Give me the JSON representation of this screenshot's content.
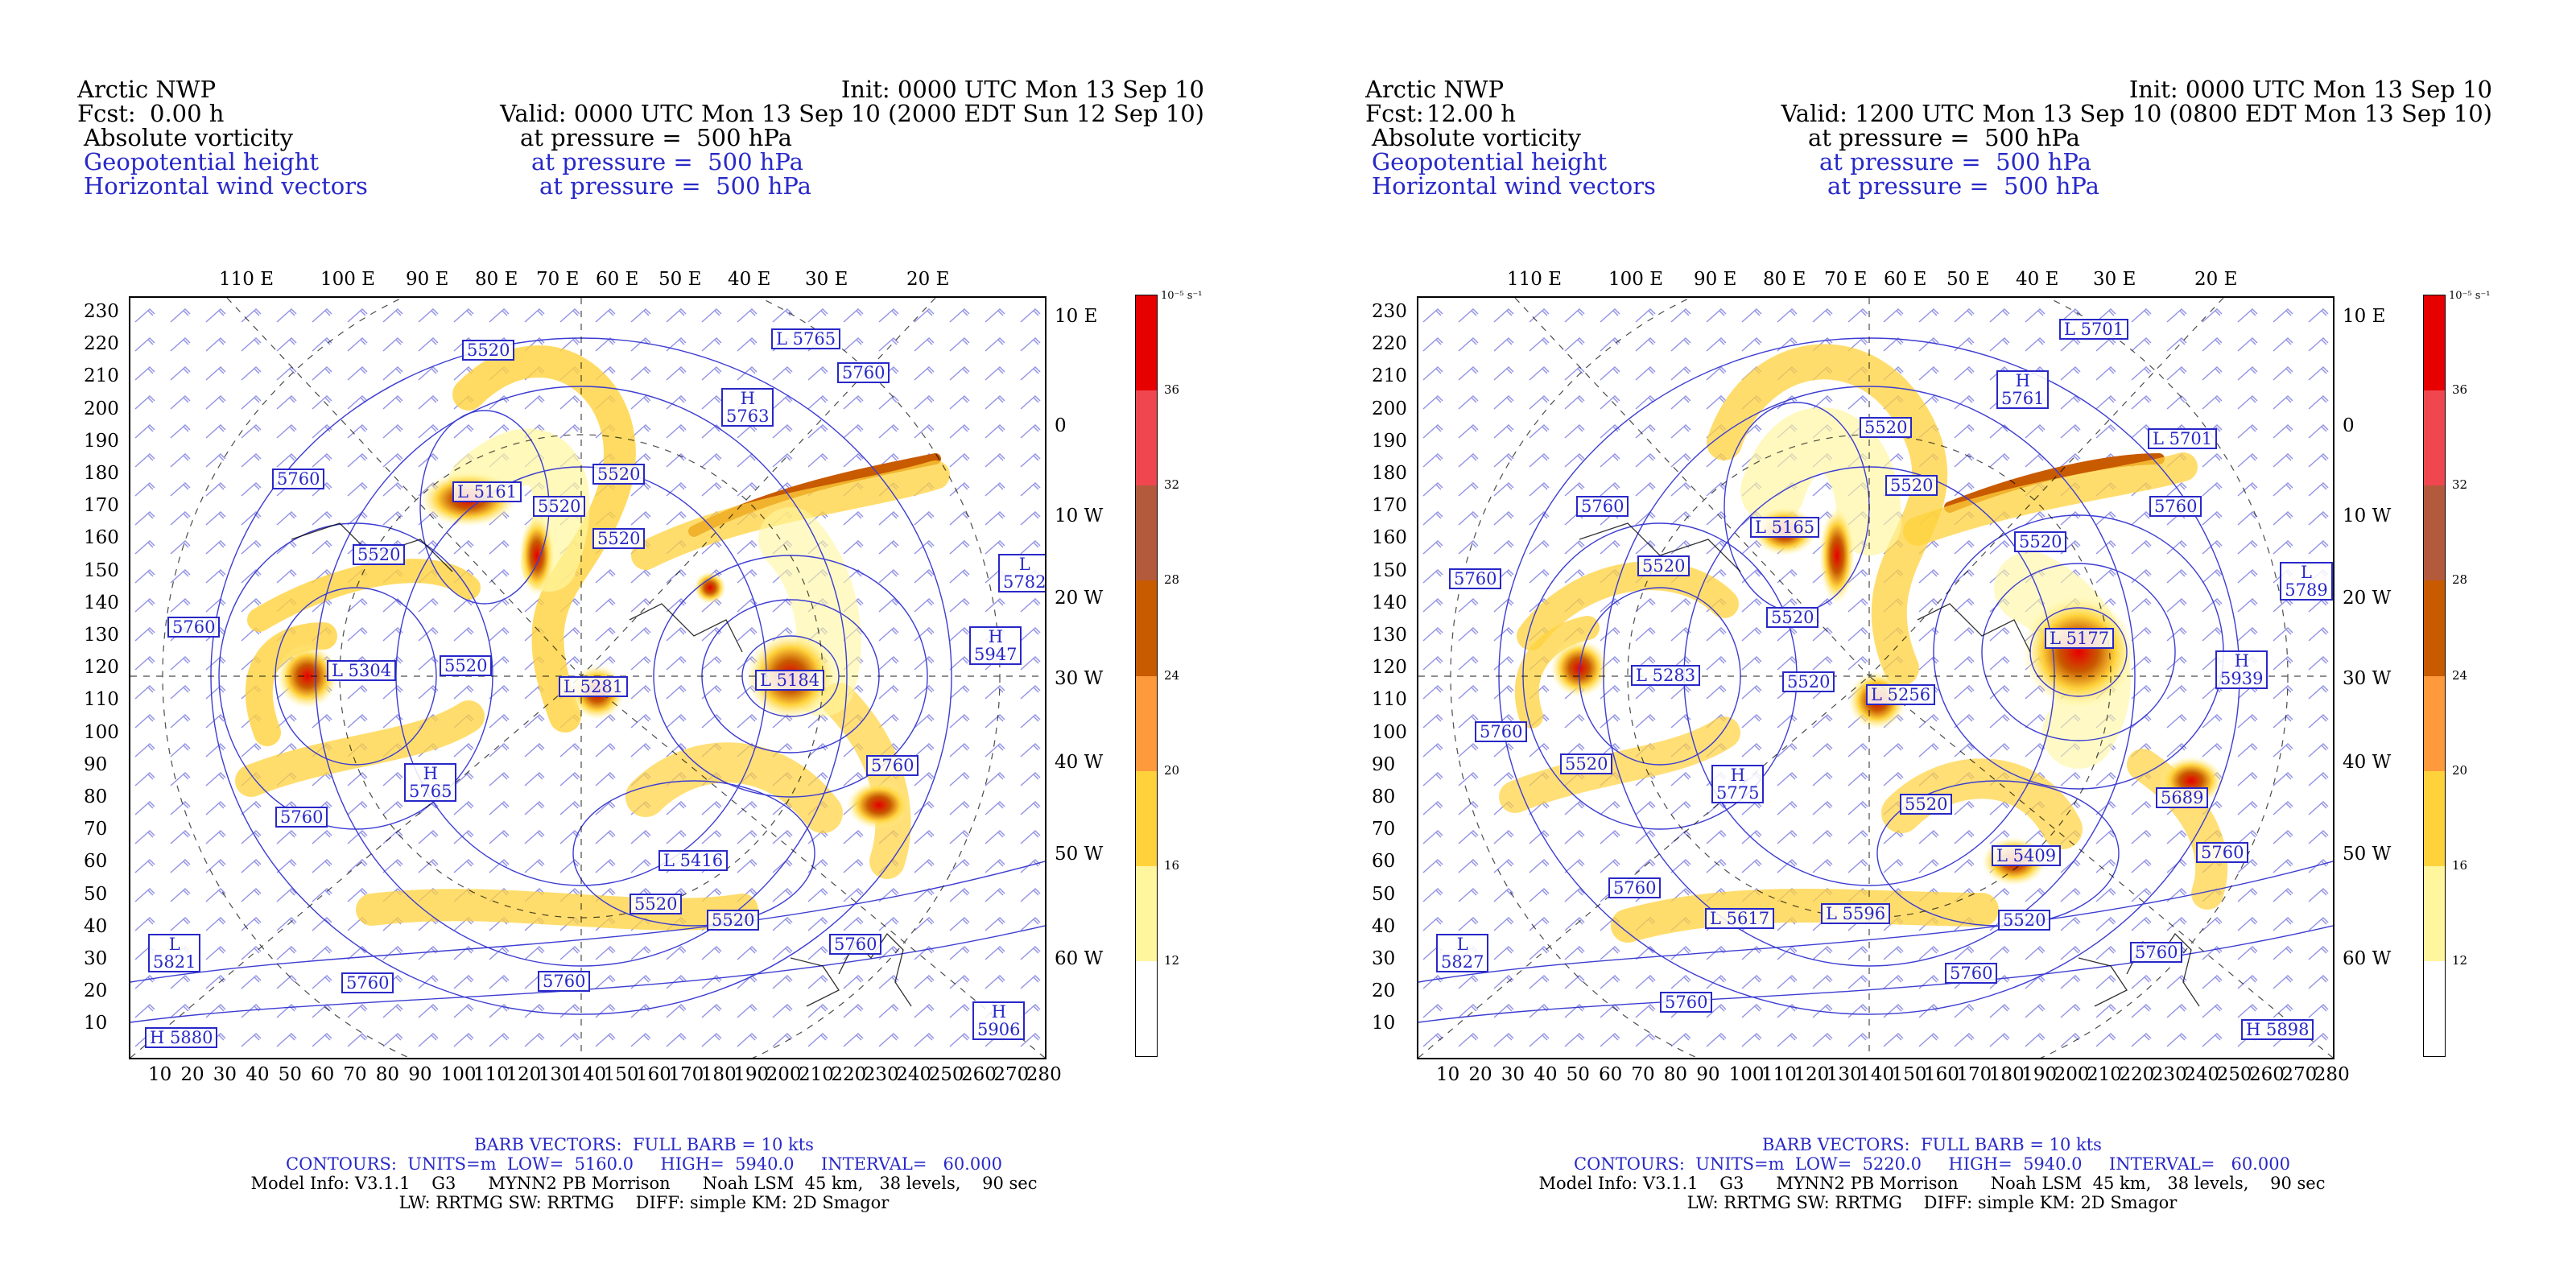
{
  "panels": [
    {
      "model": "Arctic NWP",
      "fcst_label": "Fcst:",
      "fcst_value": "0.00 h",
      "init": "Init: 0000 UTC Mon 13 Sep 10",
      "valid": "Valid: 0000 UTC Mon 13 Sep 10 (2000 EDT Sun 12 Sep 10)",
      "fields": [
        "Absolute vorticity",
        "Geopotential height",
        "Horizontal wind vectors"
      ],
      "levels": [
        "at pressure =  500 hPa",
        "at pressure =  500 hPa",
        "at pressure =  500 hPa"
      ],
      "centers": [
        {
          "type": "L",
          "value": "5765"
        },
        {
          "type": "",
          "value": "5760"
        },
        {
          "type": "H",
          "value": "5763"
        },
        {
          "type": "",
          "value": "5520"
        },
        {
          "type": "",
          "value": "5760"
        },
        {
          "type": "L",
          "value": "5161"
        },
        {
          "type": "",
          "value": "5520"
        },
        {
          "type": "",
          "value": "5520"
        },
        {
          "type": "",
          "value": "5520"
        },
        {
          "type": "L",
          "value": "5782"
        },
        {
          "type": "",
          "value": "5520"
        },
        {
          "type": "",
          "value": "5760"
        },
        {
          "type": "H",
          "value": "5947"
        },
        {
          "type": "L",
          "value": "5304"
        },
        {
          "type": "",
          "value": "5520"
        },
        {
          "type": "L",
          "value": "5281"
        },
        {
          "type": "L",
          "value": "5184"
        },
        {
          "type": "",
          "value": "5760"
        },
        {
          "type": "H",
          "value": "5765"
        },
        {
          "type": "",
          "value": "5760"
        },
        {
          "type": "L",
          "value": "5416"
        },
        {
          "type": "",
          "value": "5520"
        },
        {
          "type": "",
          "value": "5520"
        },
        {
          "type": "L",
          "value": "5821"
        },
        {
          "type": "",
          "value": "5760"
        },
        {
          "type": "",
          "value": "5760"
        },
        {
          "type": "",
          "value": "5760"
        },
        {
          "type": "H",
          "value": "5906"
        },
        {
          "type": "H",
          "value": "5880"
        }
      ]
    },
    {
      "model": "Arctic NWP",
      "fcst_label": "Fcst:",
      "fcst_value": "12.00 h",
      "init": "Init: 0000 UTC Mon 13 Sep 10",
      "valid": "Valid: 1200 UTC Mon 13 Sep 10 (0800 EDT Mon 13 Sep 10)",
      "fields": [
        "Absolute vorticity",
        "Geopotential height",
        "Horizontal wind vectors"
      ],
      "levels": [
        "at pressure =  500 hPa",
        "at pressure =  500 hPa",
        "at pressure =  500 hPa"
      ],
      "centers": [
        {
          "type": "L",
          "value": "5701"
        },
        {
          "type": "H",
          "value": "5761"
        },
        {
          "type": "",
          "value": "5520"
        },
        {
          "type": "L",
          "value": "5701"
        },
        {
          "type": "",
          "value": "5520"
        },
        {
          "type": "",
          "value": "5760"
        },
        {
          "type": "L",
          "value": "5165"
        },
        {
          "type": "",
          "value": "5760"
        },
        {
          "type": "",
          "value": "5520"
        },
        {
          "type": "",
          "value": "5520"
        },
        {
          "type": "L",
          "value": "5789"
        },
        {
          "type": "",
          "value": "5760"
        },
        {
          "type": "",
          "value": "5520"
        },
        {
          "type": "L",
          "value": "5177"
        },
        {
          "type": "H",
          "value": "5939"
        },
        {
          "type": "L",
          "value": "5283"
        },
        {
          "type": "",
          "value": "5520"
        },
        {
          "type": "L",
          "value": "5256"
        },
        {
          "type": "",
          "value": "5760"
        },
        {
          "type": "",
          "value": "5520"
        },
        {
          "type": "H",
          "value": "5775"
        },
        {
          "type": "",
          "value": "5520"
        },
        {
          "type": "",
          "value": "5689"
        },
        {
          "type": "L",
          "value": "5409"
        },
        {
          "type": "",
          "value": "5760"
        },
        {
          "type": "",
          "value": "5760"
        },
        {
          "type": "L",
          "value": "5617"
        },
        {
          "type": "L",
          "value": "5596"
        },
        {
          "type": "",
          "value": "5520"
        },
        {
          "type": "L",
          "value": "5827"
        },
        {
          "type": "",
          "value": "5760"
        },
        {
          "type": "",
          "value": "5760"
        },
        {
          "type": "",
          "value": "5760"
        },
        {
          "type": "H",
          "value": "5898"
        }
      ]
    }
  ],
  "top_lon_labels": [
    "110 E",
    "100 E",
    "90 E",
    "80 E",
    "70 E",
    "60 E",
    "50 E",
    "40 E",
    "30 E",
    "20 E"
  ],
  "right_lat_labels": [
    "10 E",
    "0",
    "10 W",
    "20 W",
    "30 W",
    "40 W",
    "50 W",
    "60 W"
  ],
  "y_ticks": [
    "230",
    "220",
    "210",
    "200",
    "190",
    "180",
    "170",
    "160",
    "150",
    "140",
    "130",
    "120",
    "110",
    "100",
    "90",
    "80",
    "70",
    "60",
    "50",
    "40",
    "30",
    "20",
    "10"
  ],
  "x_ticks": [
    "10",
    "20",
    "30",
    "40",
    "50",
    "60",
    "70",
    "80",
    "90",
    "100",
    "110",
    "120",
    "130",
    "140",
    "150",
    "160",
    "170",
    "180",
    "190",
    "200",
    "210",
    "220",
    "230",
    "240",
    "250",
    "260",
    "270",
    "280"
  ],
  "colorbar": {
    "unit": "10⁻⁵ s⁻¹",
    "labels": [
      "36",
      "32",
      "28",
      "24",
      "20",
      "16",
      "12"
    ],
    "colors": [
      "#ffffff",
      "#fff69e",
      "#ffd23c",
      "#ff9a3c",
      "#c85a00",
      "#b45a3c",
      "#f04650",
      "#e60000"
    ]
  },
  "footer": {
    "barb": "BARB VECTORS:  FULL BARB = 10 kts",
    "contours_left": [
      "CONTOURS:  UNITS=m  LOW=  5160.0     HIGH=  5940.0     INTERVAL=   60.000"
    ],
    "contours_right": [
      "CONTOURS:  UNITS=m  LOW=  5220.0     HIGH=  5940.0     INTERVAL=   60.000"
    ],
    "model_info": "Model Info: V3.1.1    G3      MYNN2 PB Morrison      Noah LSM  45 km,   38 levels,    90 sec",
    "physics": "LW: RRTMG SW: RRTMG    DIFF: simple KM: 2D Smagor"
  }
}
